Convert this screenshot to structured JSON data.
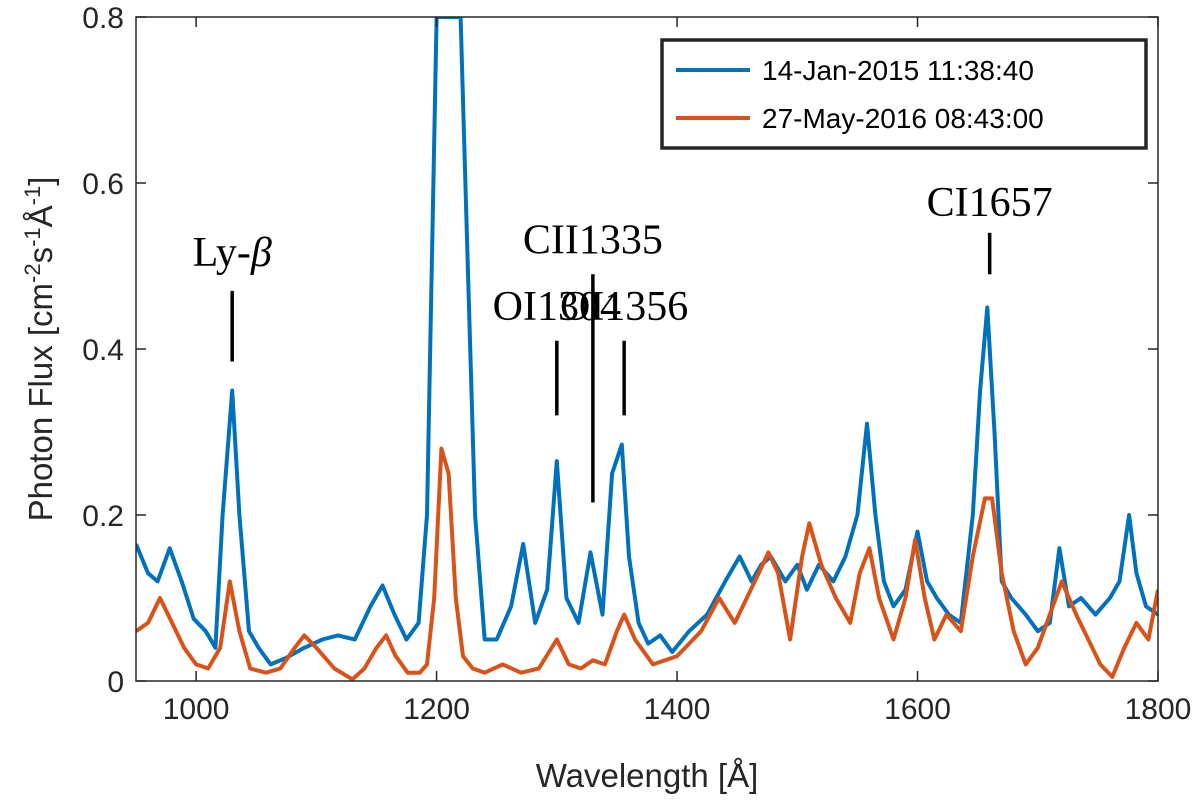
{
  "chart_data": {
    "type": "line",
    "xlabel": "Wavelength [Å]",
    "ylabel": "Photon Flux [cm",
    "ylabel_parts": [
      "-2",
      "s",
      "-1",
      "Å",
      "-1",
      "]"
    ],
    "xlim": [
      950,
      1800
    ],
    "ylim": [
      0,
      0.8
    ],
    "xticks": [
      "1000",
      "1200",
      "1400",
      "1600",
      "1800"
    ],
    "yticks": [
      "0",
      "0.2",
      "0.4",
      "0.6",
      "0.8"
    ],
    "grid": false,
    "legend_position": "top-right",
    "series": [
      {
        "name": "14-Jan-2015 11:38:40",
        "color": "#0072BD",
        "x": [
          950,
          960,
          968,
          978,
          988,
          998,
          1008,
          1016,
          1022,
          1030,
          1036,
          1044,
          1052,
          1062,
          1075,
          1090,
          1105,
          1118,
          1132,
          1145,
          1155,
          1165,
          1175,
          1185,
          1192,
          1196,
          1200,
          1204,
          1212,
          1220,
          1226,
          1232,
          1240,
          1250,
          1262,
          1272,
          1282,
          1292,
          1300,
          1308,
          1318,
          1328,
          1338,
          1346,
          1354,
          1360,
          1368,
          1376,
          1386,
          1396,
          1410,
          1425,
          1440,
          1452,
          1462,
          1470,
          1478,
          1490,
          1500,
          1508,
          1518,
          1530,
          1540,
          1550,
          1558,
          1565,
          1572,
          1580,
          1590,
          1600,
          1608,
          1616,
          1626,
          1636,
          1646,
          1652,
          1658,
          1664,
          1670,
          1678,
          1690,
          1700,
          1710,
          1718,
          1726,
          1736,
          1748,
          1760,
          1768,
          1776,
          1782,
          1790,
          1800
        ],
        "values": [
          0.165,
          0.13,
          0.12,
          0.16,
          0.12,
          0.075,
          0.06,
          0.04,
          0.2,
          0.35,
          0.2,
          0.06,
          0.04,
          0.02,
          0.028,
          0.04,
          0.05,
          0.055,
          0.05,
          0.09,
          0.115,
          0.08,
          0.05,
          0.07,
          0.2,
          0.5,
          0.8,
          0.8,
          0.8,
          0.8,
          0.5,
          0.2,
          0.05,
          0.05,
          0.09,
          0.165,
          0.07,
          0.11,
          0.265,
          0.1,
          0.07,
          0.155,
          0.08,
          0.25,
          0.285,
          0.15,
          0.07,
          0.045,
          0.055,
          0.035,
          0.06,
          0.08,
          0.12,
          0.15,
          0.12,
          0.14,
          0.15,
          0.12,
          0.14,
          0.11,
          0.14,
          0.12,
          0.15,
          0.2,
          0.31,
          0.2,
          0.12,
          0.09,
          0.11,
          0.18,
          0.12,
          0.1,
          0.08,
          0.07,
          0.2,
          0.35,
          0.45,
          0.3,
          0.12,
          0.1,
          0.08,
          0.06,
          0.07,
          0.16,
          0.09,
          0.1,
          0.08,
          0.1,
          0.12,
          0.2,
          0.13,
          0.09,
          0.08
        ]
      },
      {
        "name": "27-May-2016 08:43:00",
        "color": "#D95319",
        "x": [
          950,
          960,
          970,
          980,
          990,
          1000,
          1010,
          1020,
          1028,
          1036,
          1045,
          1058,
          1070,
          1082,
          1090,
          1100,
          1115,
          1130,
          1140,
          1150,
          1158,
          1166,
          1176,
          1186,
          1192,
          1198,
          1204,
          1210,
          1216,
          1222,
          1230,
          1240,
          1255,
          1270,
          1285,
          1300,
          1310,
          1320,
          1330,
          1340,
          1350,
          1356,
          1365,
          1380,
          1400,
          1420,
          1435,
          1448,
          1458,
          1468,
          1476,
          1484,
          1494,
          1504,
          1510,
          1520,
          1532,
          1544,
          1552,
          1560,
          1568,
          1580,
          1590,
          1598,
          1606,
          1614,
          1624,
          1636,
          1646,
          1656,
          1662,
          1670,
          1680,
          1690,
          1700,
          1710,
          1720,
          1732,
          1742,
          1752,
          1762,
          1772,
          1782,
          1792,
          1800
        ],
        "values": [
          0.06,
          0.07,
          0.1,
          0.07,
          0.04,
          0.02,
          0.015,
          0.04,
          0.12,
          0.06,
          0.015,
          0.01,
          0.015,
          0.04,
          0.055,
          0.04,
          0.015,
          0.002,
          0.015,
          0.04,
          0.055,
          0.03,
          0.01,
          0.01,
          0.02,
          0.1,
          0.28,
          0.25,
          0.1,
          0.03,
          0.015,
          0.01,
          0.02,
          0.01,
          0.015,
          0.05,
          0.02,
          0.015,
          0.025,
          0.02,
          0.06,
          0.08,
          0.05,
          0.02,
          0.03,
          0.06,
          0.1,
          0.07,
          0.1,
          0.13,
          0.155,
          0.13,
          0.05,
          0.15,
          0.19,
          0.14,
          0.1,
          0.07,
          0.13,
          0.16,
          0.1,
          0.05,
          0.1,
          0.17,
          0.1,
          0.05,
          0.08,
          0.06,
          0.15,
          0.22,
          0.22,
          0.13,
          0.06,
          0.02,
          0.04,
          0.08,
          0.12,
          0.08,
          0.05,
          0.02,
          0.005,
          0.04,
          0.07,
          0.05,
          0.11
        ]
      }
    ],
    "annotations": [
      {
        "text": "Ly-",
        "symbol": "β",
        "x": 1030,
        "y": 0.5,
        "line_from": 0.385,
        "line_to": 0.47
      },
      {
        "text": "OI1304",
        "symbol": "",
        "x": 1300,
        "y": 0.435,
        "line_from": 0.32,
        "line_to": 0.41
      },
      {
        "text": "CII1335",
        "symbol": "",
        "x": 1330,
        "y": 0.515,
        "line_from": 0.215,
        "line_to": 0.49
      },
      {
        "text": "OI1356",
        "symbol": "",
        "x": 1356,
        "y": 0.435,
        "line_from": 0.32,
        "line_to": 0.41
      },
      {
        "text": "CI1657",
        "symbol": "",
        "x": 1660,
        "y": 0.56,
        "line_from": 0.49,
        "line_to": 0.54
      }
    ]
  }
}
